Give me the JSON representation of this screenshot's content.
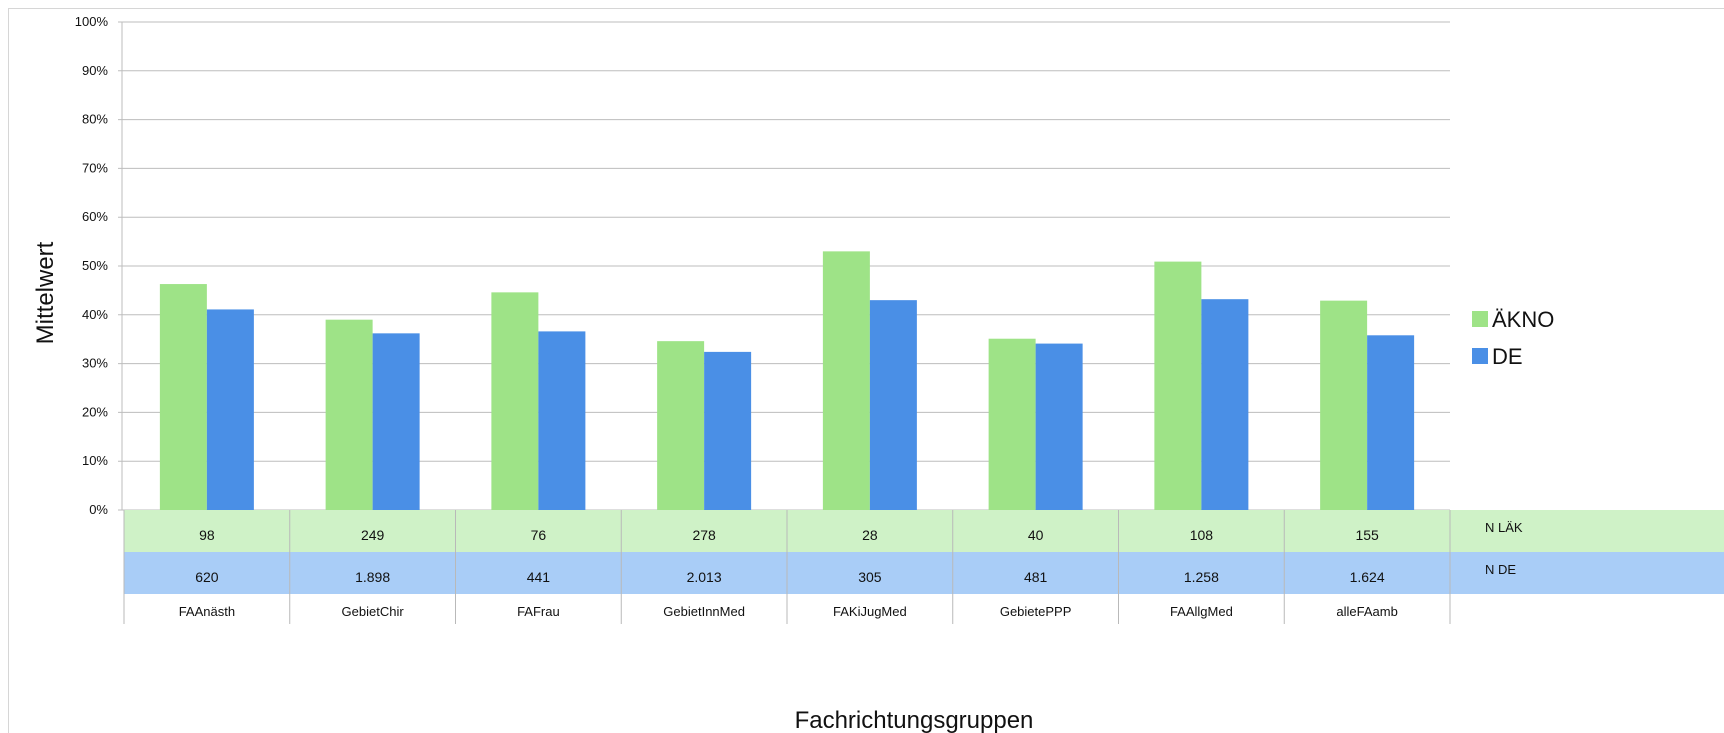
{
  "chart_data": {
    "type": "bar",
    "ylabel": "Mittelwert",
    "xlabel": "Fachrichtungsgruppen",
    "ylim": [
      0,
      100
    ],
    "y_ticks": [
      "0%",
      "10%",
      "20%",
      "30%",
      "40%",
      "50%",
      "60%",
      "70%",
      "80%",
      "90%",
      "100%"
    ],
    "categories": [
      "FAAnästh",
      "GebietChir",
      "FAFrau",
      "GebietInnMed",
      "FAKiJugMed",
      "GebietePPP",
      "FAAllgMed",
      "alleFAamb"
    ],
    "series": [
      {
        "name": "ÄKNO",
        "color": "#9ee387",
        "values": [
          46.3,
          39.0,
          44.6,
          34.6,
          53.0,
          35.1,
          50.9,
          42.9
        ]
      },
      {
        "name": "DE",
        "color": "#4a8fe6",
        "values": [
          41.1,
          36.2,
          36.6,
          32.4,
          43.0,
          34.1,
          43.2,
          35.8
        ]
      }
    ],
    "grid": true,
    "legend_position": "right",
    "data_table": {
      "rows": [
        {
          "label": "N LÄK",
          "color": "#cff2c7",
          "values": [
            "98",
            "249",
            "76",
            "278",
            "28",
            "40",
            "108",
            "155"
          ]
        },
        {
          "label": "N DE",
          "color": "#a9cdf7",
          "values": [
            "620",
            "1.898",
            "441",
            "2.013",
            "305",
            "481",
            "1.258",
            "1.624"
          ]
        }
      ]
    }
  }
}
